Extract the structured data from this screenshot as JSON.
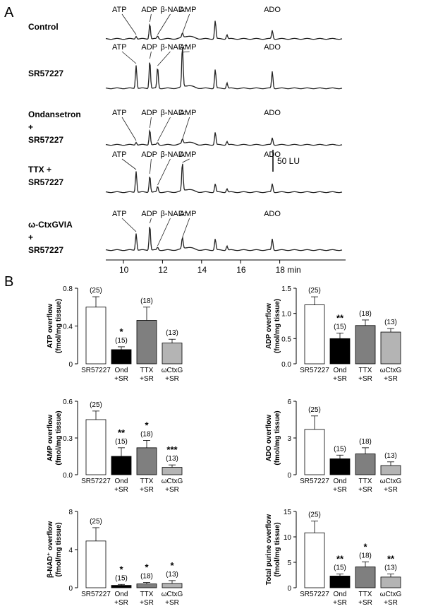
{
  "panel_a": {
    "label": "A",
    "axis_ticks": [
      "10",
      "12",
      "14",
      "16",
      "18 min"
    ],
    "scale_bar_label": "50 LU",
    "traces": [
      {
        "label_lines": [
          "Control"
        ],
        "peaks": [
          {
            "name": "ATP",
            "x": 10.65,
            "h": 4
          },
          {
            "name": "ADP",
            "x": 11.35,
            "h": 22
          },
          {
            "name": "β-NAD⁺",
            "x": 11.75,
            "h": 4
          },
          {
            "name": "AMP",
            "x": 13.02,
            "h": 6
          },
          {
            "name": "",
            "x": 14.7,
            "h": 26
          },
          {
            "name": "",
            "x": 15.3,
            "h": 6
          },
          {
            "name": "ADO",
            "x": 17.62,
            "h": 12
          }
        ]
      },
      {
        "label_lines": [
          "SR57227"
        ],
        "peaks": [
          {
            "name": "ATP",
            "x": 10.65,
            "h": 33
          },
          {
            "name": "ADP",
            "x": 11.35,
            "h": 40
          },
          {
            "name": "β-NAD⁺",
            "x": 11.75,
            "h": 30
          },
          {
            "name": "AMP",
            "x": 13.02,
            "h": 58
          },
          {
            "name": "",
            "x": 14.7,
            "h": 27
          },
          {
            "name": "",
            "x": 15.3,
            "h": 8
          },
          {
            "name": "ADO",
            "x": 17.62,
            "h": 24
          }
        ]
      },
      {
        "label_lines": [
          "Ondansetron",
          "+",
          "SR57227"
        ],
        "peaks": [
          {
            "name": "ATP",
            "x": 10.65,
            "h": 4
          },
          {
            "name": "ADP",
            "x": 11.35,
            "h": 22
          },
          {
            "name": "β-NAD⁺",
            "x": 11.75,
            "h": 3
          },
          {
            "name": "AMP",
            "x": 13.02,
            "h": 6
          },
          {
            "name": "",
            "x": 14.7,
            "h": 18
          },
          {
            "name": "",
            "x": 15.3,
            "h": 5
          },
          {
            "name": "ADO",
            "x": 17.62,
            "h": 10
          }
        ]
      },
      {
        "label_lines": [
          "TTX +",
          "SR57227"
        ],
        "peaks": [
          {
            "name": "ATP",
            "x": 10.65,
            "h": 30
          },
          {
            "name": "ADP",
            "x": 11.35,
            "h": 24
          },
          {
            "name": "β-NAD⁺",
            "x": 11.75,
            "h": 8
          },
          {
            "name": "AMP",
            "x": 13.02,
            "h": 40
          },
          {
            "name": "",
            "x": 14.7,
            "h": 12
          },
          {
            "name": "",
            "x": 15.3,
            "h": 5
          },
          {
            "name": "ADO",
            "x": 17.62,
            "h": 12
          }
        ]
      },
      {
        "label_lines": [
          "ω-CtxGVIA",
          "+",
          "SR57227"
        ],
        "peaks": [
          {
            "name": "ATP",
            "x": 10.65,
            "h": 24
          },
          {
            "name": "ADP",
            "x": 11.35,
            "h": 36
          },
          {
            "name": "β-NAD⁺",
            "x": 11.75,
            "h": 4
          },
          {
            "name": "AMP",
            "x": 13.02,
            "h": 16
          },
          {
            "name": "",
            "x": 14.7,
            "h": 16
          },
          {
            "name": "",
            "x": 15.3,
            "h": 6
          },
          {
            "name": "ADO",
            "x": 17.62,
            "h": 16
          }
        ]
      }
    ]
  },
  "panel_b": {
    "label": "B"
  },
  "colors": {
    "SR57227": "#ffffff",
    "Ond": "#000000",
    "TTX": "#7f7f7f",
    "wCtxG": "#b4b4b4"
  },
  "chart_data": [
    {
      "type": "bar",
      "ylabel_lines": [
        "ATP overflow",
        "(fmol/mg tissue)"
      ],
      "ylim": [
        0,
        0.8
      ],
      "yticks": [
        "0",
        "0.4",
        "0.8"
      ],
      "categories": [
        [
          "SR57227"
        ],
        [
          "Ond",
          "+SR"
        ],
        [
          "TTX",
          "+SR"
        ],
        [
          "ωCtxG",
          "+SR"
        ]
      ],
      "values": [
        0.6,
        0.15,
        0.46,
        0.22
      ],
      "errors": [
        0.11,
        0.03,
        0.14,
        0.04
      ],
      "n_labels": [
        "(25)",
        "(15)",
        "(18)",
        "(13)"
      ],
      "sig": [
        "",
        "*",
        "",
        ""
      ]
    },
    {
      "type": "bar",
      "ylabel_lines": [
        "ADP overflow",
        "(fmol/mg tissue)"
      ],
      "ylim": [
        0,
        1.5
      ],
      "yticks": [
        "0.0",
        "0.5",
        "1.0",
        "1.5"
      ],
      "categories": [
        [
          "SR57227"
        ],
        [
          "Ond",
          "+SR"
        ],
        [
          "TTX",
          "+SR"
        ],
        [
          "ωCtxG",
          "+SR"
        ]
      ],
      "values": [
        1.17,
        0.5,
        0.76,
        0.63
      ],
      "errors": [
        0.16,
        0.11,
        0.11,
        0.07
      ],
      "n_labels": [
        "(25)",
        "(15)",
        "(18)",
        "(13)"
      ],
      "sig": [
        "",
        "**",
        "",
        ""
      ]
    },
    {
      "type": "bar",
      "ylabel_lines": [
        "AMP overflow",
        "(fmol/mg tissue)"
      ],
      "ylim": [
        0,
        0.6
      ],
      "yticks": [
        "0.0",
        "0.3",
        "0.6"
      ],
      "categories": [
        [
          "SR57227"
        ],
        [
          "Ond",
          "+SR"
        ],
        [
          "TTX",
          "+SR"
        ],
        [
          "ωCtxG",
          "+SR"
        ]
      ],
      "values": [
        0.45,
        0.15,
        0.22,
        0.06
      ],
      "errors": [
        0.07,
        0.07,
        0.06,
        0.02
      ],
      "n_labels": [
        "(25)",
        "(15)",
        "(18)",
        "(13)"
      ],
      "sig": [
        "",
        "**",
        "*",
        "***"
      ]
    },
    {
      "type": "bar",
      "ylabel_lines": [
        "ADO overflow",
        "(fmol/mg tissue)"
      ],
      "ylim": [
        0,
        6
      ],
      "yticks": [
        "0",
        "3",
        "6"
      ],
      "categories": [
        [
          "SR57227"
        ],
        [
          "Ond",
          "+SR"
        ],
        [
          "TTX",
          "+SR"
        ],
        [
          "ωCtxG",
          "+SR"
        ]
      ],
      "values": [
        3.7,
        1.3,
        1.7,
        0.75
      ],
      "errors": [
        1.1,
        0.3,
        0.5,
        0.3
      ],
      "n_labels": [
        "(25)",
        "(15)",
        "(18)",
        "(13)"
      ],
      "sig": [
        "",
        "",
        "",
        ""
      ]
    },
    {
      "type": "bar",
      "ylabel_lines": [
        "β-NAD⁺ overflow",
        "(fmol/mg tissue)"
      ],
      "ylim": [
        0,
        8
      ],
      "yticks": [
        "0",
        "4",
        "8"
      ],
      "categories": [
        [
          "SR57227"
        ],
        [
          "Ond",
          "+SR"
        ],
        [
          "TTX",
          "+SR"
        ],
        [
          "ωCtxG",
          "+SR"
        ]
      ],
      "values": [
        4.9,
        0.25,
        0.4,
        0.45
      ],
      "errors": [
        1.4,
        0.1,
        0.15,
        0.3
      ],
      "n_labels": [
        "(25)",
        "(15)",
        "(18)",
        "(13)"
      ],
      "sig": [
        "",
        "*",
        "*",
        "*"
      ]
    },
    {
      "type": "bar",
      "ylabel_lines": [
        "Total purine overflow",
        "(fmol/mg tissue)"
      ],
      "ylim": [
        0,
        15
      ],
      "yticks": [
        "0",
        "5",
        "10",
        "15"
      ],
      "categories": [
        [
          "SR57227"
        ],
        [
          "Ond",
          "+SR"
        ],
        [
          "TTX",
          "+SR"
        ],
        [
          "ωCtxG",
          "+SR"
        ]
      ],
      "values": [
        10.8,
        2.3,
        4.1,
        2.1
      ],
      "errors": [
        2.3,
        0.4,
        1.0,
        0.6
      ],
      "n_labels": [
        "(25)",
        "(15)",
        "(18)",
        "(13)"
      ],
      "sig": [
        "",
        "**",
        "*",
        "**"
      ]
    }
  ]
}
